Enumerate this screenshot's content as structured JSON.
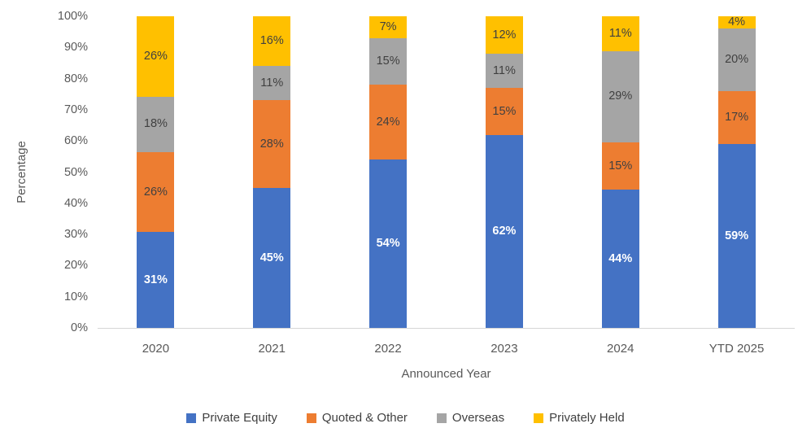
{
  "chart_data": {
    "type": "bar",
    "variant": "stacked-100",
    "title": "",
    "xlabel": "Announced Year",
    "ylabel": "Percentage",
    "categories": [
      "2020",
      "2021",
      "2022",
      "2023",
      "2024",
      "YTD 2025"
    ],
    "series": [
      {
        "name": "Private Equity",
        "color": "#4472C4",
        "values": [
          31,
          45,
          54,
          62,
          44,
          59
        ],
        "label_color": "#FFFFFF",
        "label_bold": true
      },
      {
        "name": "Quoted & Other",
        "color": "#ED7D31",
        "values": [
          26,
          28,
          24,
          15,
          15,
          17
        ],
        "label_color": "#404040",
        "label_bold": false
      },
      {
        "name": "Overseas",
        "color": "#A5A5A5",
        "values": [
          18,
          11,
          15,
          11,
          29,
          20
        ],
        "label_color": "#404040",
        "label_bold": false
      },
      {
        "name": "Privately Held",
        "color": "#FFC000",
        "values": [
          26,
          16,
          7,
          12,
          11,
          4
        ],
        "label_color": "#404040",
        "label_bold": false
      }
    ],
    "data_label_suffix": "%",
    "y_ticks": [
      "0%",
      "10%",
      "20%",
      "30%",
      "40%",
      "50%",
      "60%",
      "70%",
      "80%",
      "90%",
      "100%"
    ],
    "ylim": [
      0,
      100
    ],
    "grid": false,
    "legend_position": "bottom",
    "colors": {
      "axis_line": "#D6D6D6",
      "tick_label": "#595959",
      "axis_title": "#595959",
      "legend_label": "#404040"
    }
  }
}
